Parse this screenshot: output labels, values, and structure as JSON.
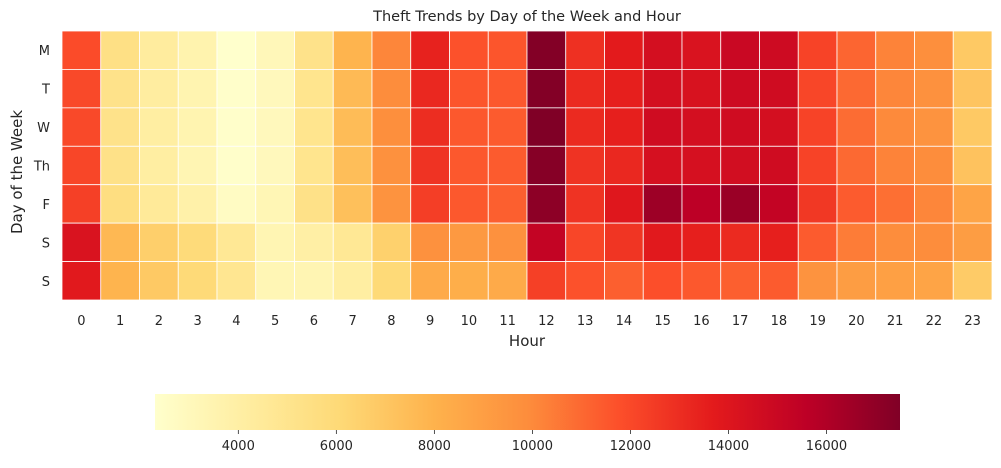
{
  "chart_data": {
    "type": "heatmap",
    "title": "Theft Trends by Day of the Week and Hour",
    "xlabel": "Hour",
    "ylabel": "Day of the Week",
    "x": [
      "0",
      "1",
      "2",
      "3",
      "4",
      "5",
      "6",
      "7",
      "8",
      "9",
      "10",
      "11",
      "12",
      "13",
      "14",
      "15",
      "16",
      "17",
      "18",
      "19",
      "20",
      "21",
      "22",
      "23"
    ],
    "y": [
      "M",
      "T",
      "W",
      "Th",
      "F",
      "S",
      "S"
    ],
    "values": [
      [
        11900,
        5400,
        4300,
        3600,
        2300,
        3100,
        5200,
        7900,
        10100,
        13400,
        11700,
        11600,
        17400,
        12900,
        13700,
        14500,
        14200,
        15000,
        14800,
        12200,
        11100,
        10200,
        9800,
        6900
      ],
      [
        12000,
        5200,
        4200,
        3500,
        2400,
        3000,
        5000,
        7600,
        9900,
        13200,
        11600,
        11500,
        17400,
        13100,
        13500,
        14500,
        14300,
        14800,
        14700,
        12100,
        11000,
        10100,
        9700,
        7100
      ],
      [
        12000,
        5200,
        4100,
        3500,
        2400,
        3000,
        5000,
        7500,
        9800,
        13000,
        11500,
        11400,
        17500,
        13100,
        13500,
        14700,
        14500,
        14700,
        14500,
        12200,
        10900,
        10000,
        9600,
        6900
      ],
      [
        12100,
        5300,
        4100,
        3400,
        2400,
        3000,
        5000,
        7400,
        9700,
        12800,
        11500,
        11400,
        17300,
        12800,
        13200,
        14400,
        14400,
        14600,
        14700,
        12200,
        11000,
        10200,
        9900,
        7200
      ],
      [
        12300,
        5600,
        4500,
        3800,
        2700,
        3300,
        5300,
        7300,
        9600,
        12400,
        11500,
        11300,
        17100,
        12800,
        13900,
        16600,
        15600,
        16700,
        15300,
        12600,
        11400,
        10800,
        10100,
        8700
      ],
      [
        14200,
        7700,
        6600,
        5900,
        4700,
        3400,
        4000,
        4700,
        6500,
        9700,
        9300,
        9700,
        15300,
        12100,
        12700,
        13800,
        13500,
        13100,
        13500,
        11400,
        10400,
        9900,
        9900,
        9100
      ],
      [
        13800,
        7900,
        6900,
        6000,
        4900,
        3300,
        3400,
        4100,
        6000,
        8400,
        8200,
        8400,
        12300,
        11700,
        11300,
        11800,
        11500,
        11300,
        11400,
        9600,
        9100,
        8900,
        8700,
        6800
      ]
    ],
    "colorbar": {
      "vmin": 2300,
      "vmax": 17500,
      "ticks": [
        4000,
        6000,
        8000,
        10000,
        12000,
        14000,
        16000
      ],
      "orientation": "horizontal",
      "position": "bottom"
    },
    "colormap": [
      "#ffffcc",
      "#ffeda0",
      "#fed976",
      "#feb24c",
      "#fd8d3c",
      "#fc4e2a",
      "#e31a1c",
      "#bd0026",
      "#800026"
    ],
    "grid": false,
    "legend": "none"
  }
}
